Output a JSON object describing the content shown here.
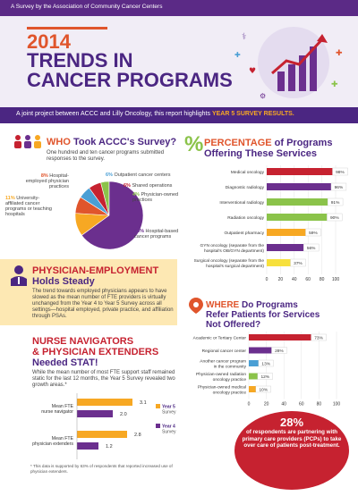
{
  "header": {
    "tagline": "A Survey by the Association of Community Cancer Centers",
    "year": "2014",
    "title_line1": "TRENDS IN",
    "title_line2": "CANCER PROGRAMS",
    "subtitle_prefix": "A joint project between ACCC and Lilly Oncology, this report highlights",
    "subtitle_highlight": "YEAR 5 SURVEY RESULTS."
  },
  "who": {
    "heading_a": "WHO",
    "heading_b": "Took ACCC's Survey?",
    "desc": "One hundred and ten cancer programs submitted responses to the survey."
  },
  "pie_data": {
    "type": "pie",
    "slices": [
      {
        "label": "Hospital-based cancer programs",
        "value": 65,
        "color": "#6b2f8e"
      },
      {
        "label": "University-affiliated cancer programs or teaching hospitals",
        "value": 11,
        "color": "#f7a823"
      },
      {
        "label": "Hospital-employed physician practices",
        "value": 8,
        "color": "#e0552c"
      },
      {
        "label": "Outpatient cancer centers",
        "value": 6,
        "color": "#4a9fd5"
      },
      {
        "label": "Shared operations",
        "value": 6,
        "color": "#c62230"
      },
      {
        "label": "Physician-owned practices",
        "value": 4,
        "color": "#8bc34a"
      }
    ]
  },
  "services": {
    "heading_a": "PERCENTAGE",
    "heading_b": "of Programs",
    "heading_c": "Offering These Services",
    "percent_sign": "%"
  },
  "chart_data": [
    {
      "type": "bar",
      "categories": [
        "Medical oncology",
        "Diagnostic radiology",
        "Interventional radiology",
        "Radiation oncology",
        "Outpatient pharmacy",
        "GYN oncology (separate from the hospital's OB/GYN department)",
        "Surgical oncology (separate from the hospital's surgical department)"
      ],
      "values": [
        98,
        96,
        91,
        90,
        59,
        56,
        37
      ],
      "value_labels": [
        "98%",
        "96%",
        "91%",
        "90%",
        "59%",
        "56%",
        "37%"
      ],
      "colors": [
        "#c62230",
        "#6b2f8e",
        "#8bc34a",
        "#8bc34a",
        "#f7a823",
        "#6b2f8e",
        "#f7e03c"
      ],
      "xlim": [
        0,
        100
      ],
      "ticks": [
        "0",
        "20",
        "40",
        "60",
        "80",
        "100"
      ]
    },
    {
      "type": "bar",
      "categories": [
        "Academic or Tertiary Center",
        "Regional cancer center",
        "Another cancer program in the community",
        "Physician-owned radiation oncology practice",
        "Physician-owned medical oncology practice"
      ],
      "values": [
        73,
        28,
        13,
        12,
        10
      ],
      "value_labels": [
        "73%",
        "28%",
        "13%",
        "12%",
        "10%"
      ],
      "colors": [
        "#c62230",
        "#6b2f8e",
        "#4a9fd5",
        "#8bc34a",
        "#f7a823"
      ],
      "xlim": [
        0,
        100
      ],
      "ticks": [
        "0",
        "20",
        "40",
        "60",
        "80",
        "100"
      ]
    },
    {
      "type": "bar",
      "categories": [
        "Mean FTE nurse navigator",
        "Mean FTE physician extenders"
      ],
      "series": [
        {
          "name": "Year 5 Survey",
          "values": [
            3.1,
            2.8
          ],
          "color": "#f7a823"
        },
        {
          "name": "Year 4 Survey",
          "values": [
            2.0,
            1.2
          ],
          "color": "#6b2f8e"
        }
      ],
      "value_labels": [
        [
          "3.1",
          "2.8"
        ],
        [
          "2.0",
          "1.2"
        ]
      ]
    }
  ],
  "phys": {
    "heading_a": "PHYSICIAN-EMPLOYMENT",
    "heading_b": "Holds Steady",
    "body": "The trend towards employed physicians appears to have slowed as the mean number of FTE providers is virtually unchanged from the Year 4 to Year 5 Survey across all settings—hospital employed, private practice, and affiliation through PSAs."
  },
  "nurse": {
    "heading_a": "NURSE NAVIGATORS",
    "heading_b": "& PHYSICIAN EXTENDERS",
    "heading_c": "Needed STAT!",
    "body": "While the mean number of most FTE support staff remained static for the last 12 months, the Year 5 Survey revealed two growth areas.*",
    "footnote": "* This data is supported by 63% of respondents that reported increased use of physician extenders."
  },
  "where": {
    "heading_a": "WHERE",
    "heading_b": "Do Programs",
    "heading_c": "Refer Patients for Services",
    "heading_d": "Not Offered?"
  },
  "callout": {
    "big": "28%",
    "text": "of respondents are partnering with primary care providers (PCPs) to take over care of patients post-treatment."
  }
}
